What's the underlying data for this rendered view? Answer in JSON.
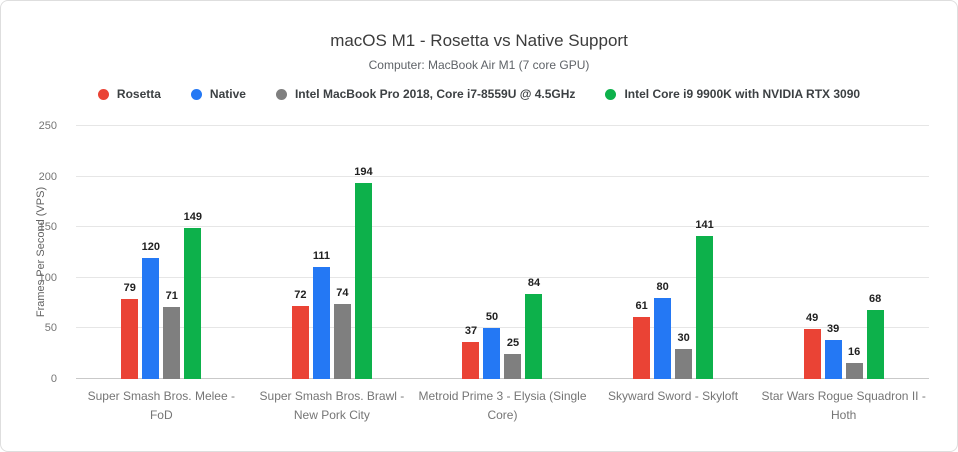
{
  "header": {
    "title": "macOS M1 - Rosetta vs Native Support",
    "subtitle": "Computer: MacBook Air M1 (7 core GPU)"
  },
  "chart_data": {
    "type": "bar",
    "title": "macOS M1 - Rosetta vs Native Support",
    "subtitle": "Computer: MacBook Air M1 (7 core GPU)",
    "xlabel": "",
    "ylabel": "Frames Per Second (VPS)",
    "ylim": [
      0,
      250
    ],
    "yticks": [
      0,
      50,
      100,
      150,
      200,
      250
    ],
    "grid": true,
    "legend_position": "top",
    "categories": [
      "Super Smash Bros. Melee - FoD",
      "Super Smash Bros. Brawl - New Pork City",
      "Metroid Prime 3 - Elysia (Single Core)",
      "Skyward Sword - Skyloft",
      "Star Wars Rogue Squadron II - Hoth"
    ],
    "series": [
      {
        "name": "Rosetta",
        "color": "#ea4335",
        "values": [
          79,
          72,
          37,
          61,
          49
        ]
      },
      {
        "name": "Native",
        "color": "#2478f4",
        "values": [
          120,
          111,
          50,
          80,
          39
        ]
      },
      {
        "name": "Intel MacBook Pro 2018, Core i7-8559U @ 4.5GHz",
        "color": "#7f7f7f",
        "values": [
          71,
          74,
          25,
          30,
          16
        ]
      },
      {
        "name": "Intel Core i9 9900K with NVIDIA RTX 3090",
        "color": "#0db14b",
        "values": [
          149,
          194,
          84,
          141,
          68
        ]
      }
    ]
  }
}
